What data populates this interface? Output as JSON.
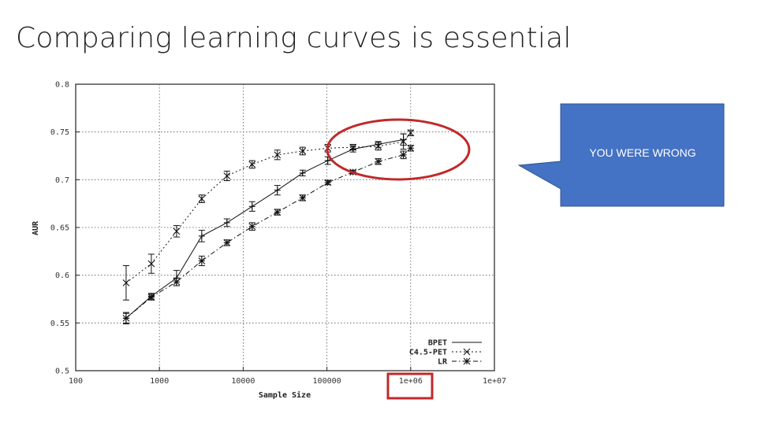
{
  "slide": {
    "title": "Comparing learning curves is essential",
    "callout_text": "YOU WERE WRONG",
    "callout_color": "#4472C4",
    "highlight_color": "#C0292B"
  },
  "chart_data": {
    "type": "line",
    "title": "",
    "xlabel": "Sample Size",
    "ylabel": "AUR",
    "xscale": "log",
    "xlim": [
      100,
      10000000
    ],
    "ylim": [
      0.5,
      0.8
    ],
    "grid": true,
    "legend_position": "bottom-right",
    "x_ticks": [
      "100",
      "1000",
      "10000",
      "100000",
      "1e+06",
      "1e+07"
    ],
    "y_ticks": [
      "0.5",
      "0.55",
      "0.6",
      "0.65",
      "0.7",
      "0.75",
      "0.8"
    ],
    "series": [
      {
        "name": "BPET",
        "style": "solid",
        "marker": "plus",
        "x": [
          400,
          800,
          1600,
          3200,
          6400,
          12800,
          25600,
          51200,
          102400,
          204800,
          409600,
          819200
        ],
        "y": [
          0.555,
          0.578,
          0.597,
          0.641,
          0.655,
          0.672,
          0.689,
          0.707,
          0.72,
          0.732,
          0.737,
          0.742
        ],
        "err": [
          0.005,
          0.003,
          0.008,
          0.006,
          0.004,
          0.005,
          0.005,
          0.003,
          0.004,
          0.003,
          0.003,
          0.006
        ]
      },
      {
        "name": "C4.5-PET",
        "style": "dotted",
        "marker": "x",
        "x": [
          400,
          800,
          1600,
          3200,
          6400,
          12800,
          25600,
          51200,
          102400,
          204800,
          409600,
          819200,
          1000000
        ],
        "y": [
          0.592,
          0.612,
          0.646,
          0.68,
          0.704,
          0.716,
          0.726,
          0.73,
          0.733,
          0.734,
          0.735,
          0.74,
          0.749
        ],
        "err": [
          0.018,
          0.01,
          0.006,
          0.004,
          0.005,
          0.004,
          0.005,
          0.004,
          0.004,
          0.003,
          0.004,
          0.008,
          0.003
        ]
      },
      {
        "name": "LR",
        "style": "dashdot",
        "marker": "star",
        "x": [
          400,
          800,
          1600,
          3200,
          6400,
          12800,
          25600,
          51200,
          102400,
          204800,
          409600,
          819200,
          1000000
        ],
        "y": [
          0.555,
          0.577,
          0.593,
          0.615,
          0.634,
          0.651,
          0.666,
          0.681,
          0.697,
          0.708,
          0.719,
          0.726,
          0.733
        ],
        "err": [
          0.006,
          0.003,
          0.004,
          0.005,
          0.003,
          0.004,
          0.003,
          0.003,
          0.002,
          0.002,
          0.003,
          0.004,
          0.003
        ]
      }
    ]
  }
}
